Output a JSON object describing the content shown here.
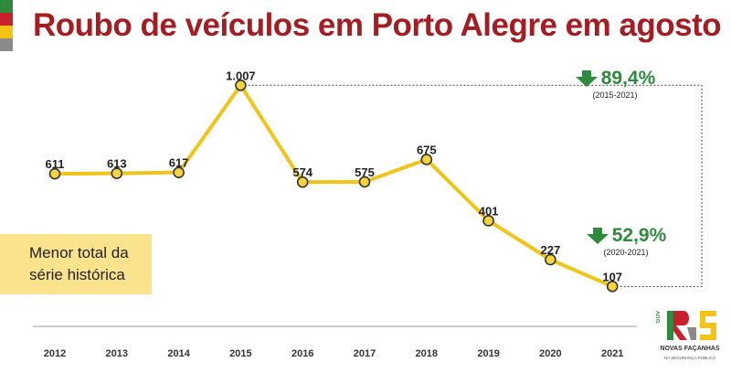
{
  "colors": {
    "title": "#a31d22",
    "line": "#f0c419",
    "marker_fill": "#f5d33c",
    "marker_stroke": "#333333",
    "accent_green": "#2e8b3e",
    "note_bg": "#fbe38e",
    "flag": [
      "#2e8b3e",
      "#c8202c",
      "#f3c318",
      "#8a8a8a"
    ]
  },
  "note": {
    "line1": "Menor total da",
    "line2": "série histórica"
  },
  "callouts": [
    {
      "pct": "89,4%",
      "period": "(2015-2021)",
      "icon": "down-arrow-icon"
    },
    {
      "pct": "52,9%",
      "period": "(2020-2021)",
      "icon": "down-arrow-icon"
    }
  ],
  "logo": {
    "tag": "GOV",
    "mark": "RS",
    "name": "NOVAS FAÇANHAS",
    "sub": "NA SEGURANÇA PÚBLICA"
  },
  "chart_data": {
    "type": "line",
    "title": "Roubo de veículos em Porto Alegre em agosto",
    "xlabel": "",
    "ylabel": "",
    "grid": false,
    "legend": "none",
    "ylim": [
      0,
      1100
    ],
    "categories": [
      "2012",
      "2013",
      "2014",
      "2015",
      "2016",
      "2017",
      "2018",
      "2019",
      "2020",
      "2021"
    ],
    "values": [
      611,
      613,
      617,
      1007,
      574,
      575,
      675,
      401,
      227,
      107
    ],
    "value_labels": [
      "611",
      "613",
      "617",
      "1.007",
      "574",
      "575",
      "675",
      "401",
      "227",
      "107"
    ]
  }
}
